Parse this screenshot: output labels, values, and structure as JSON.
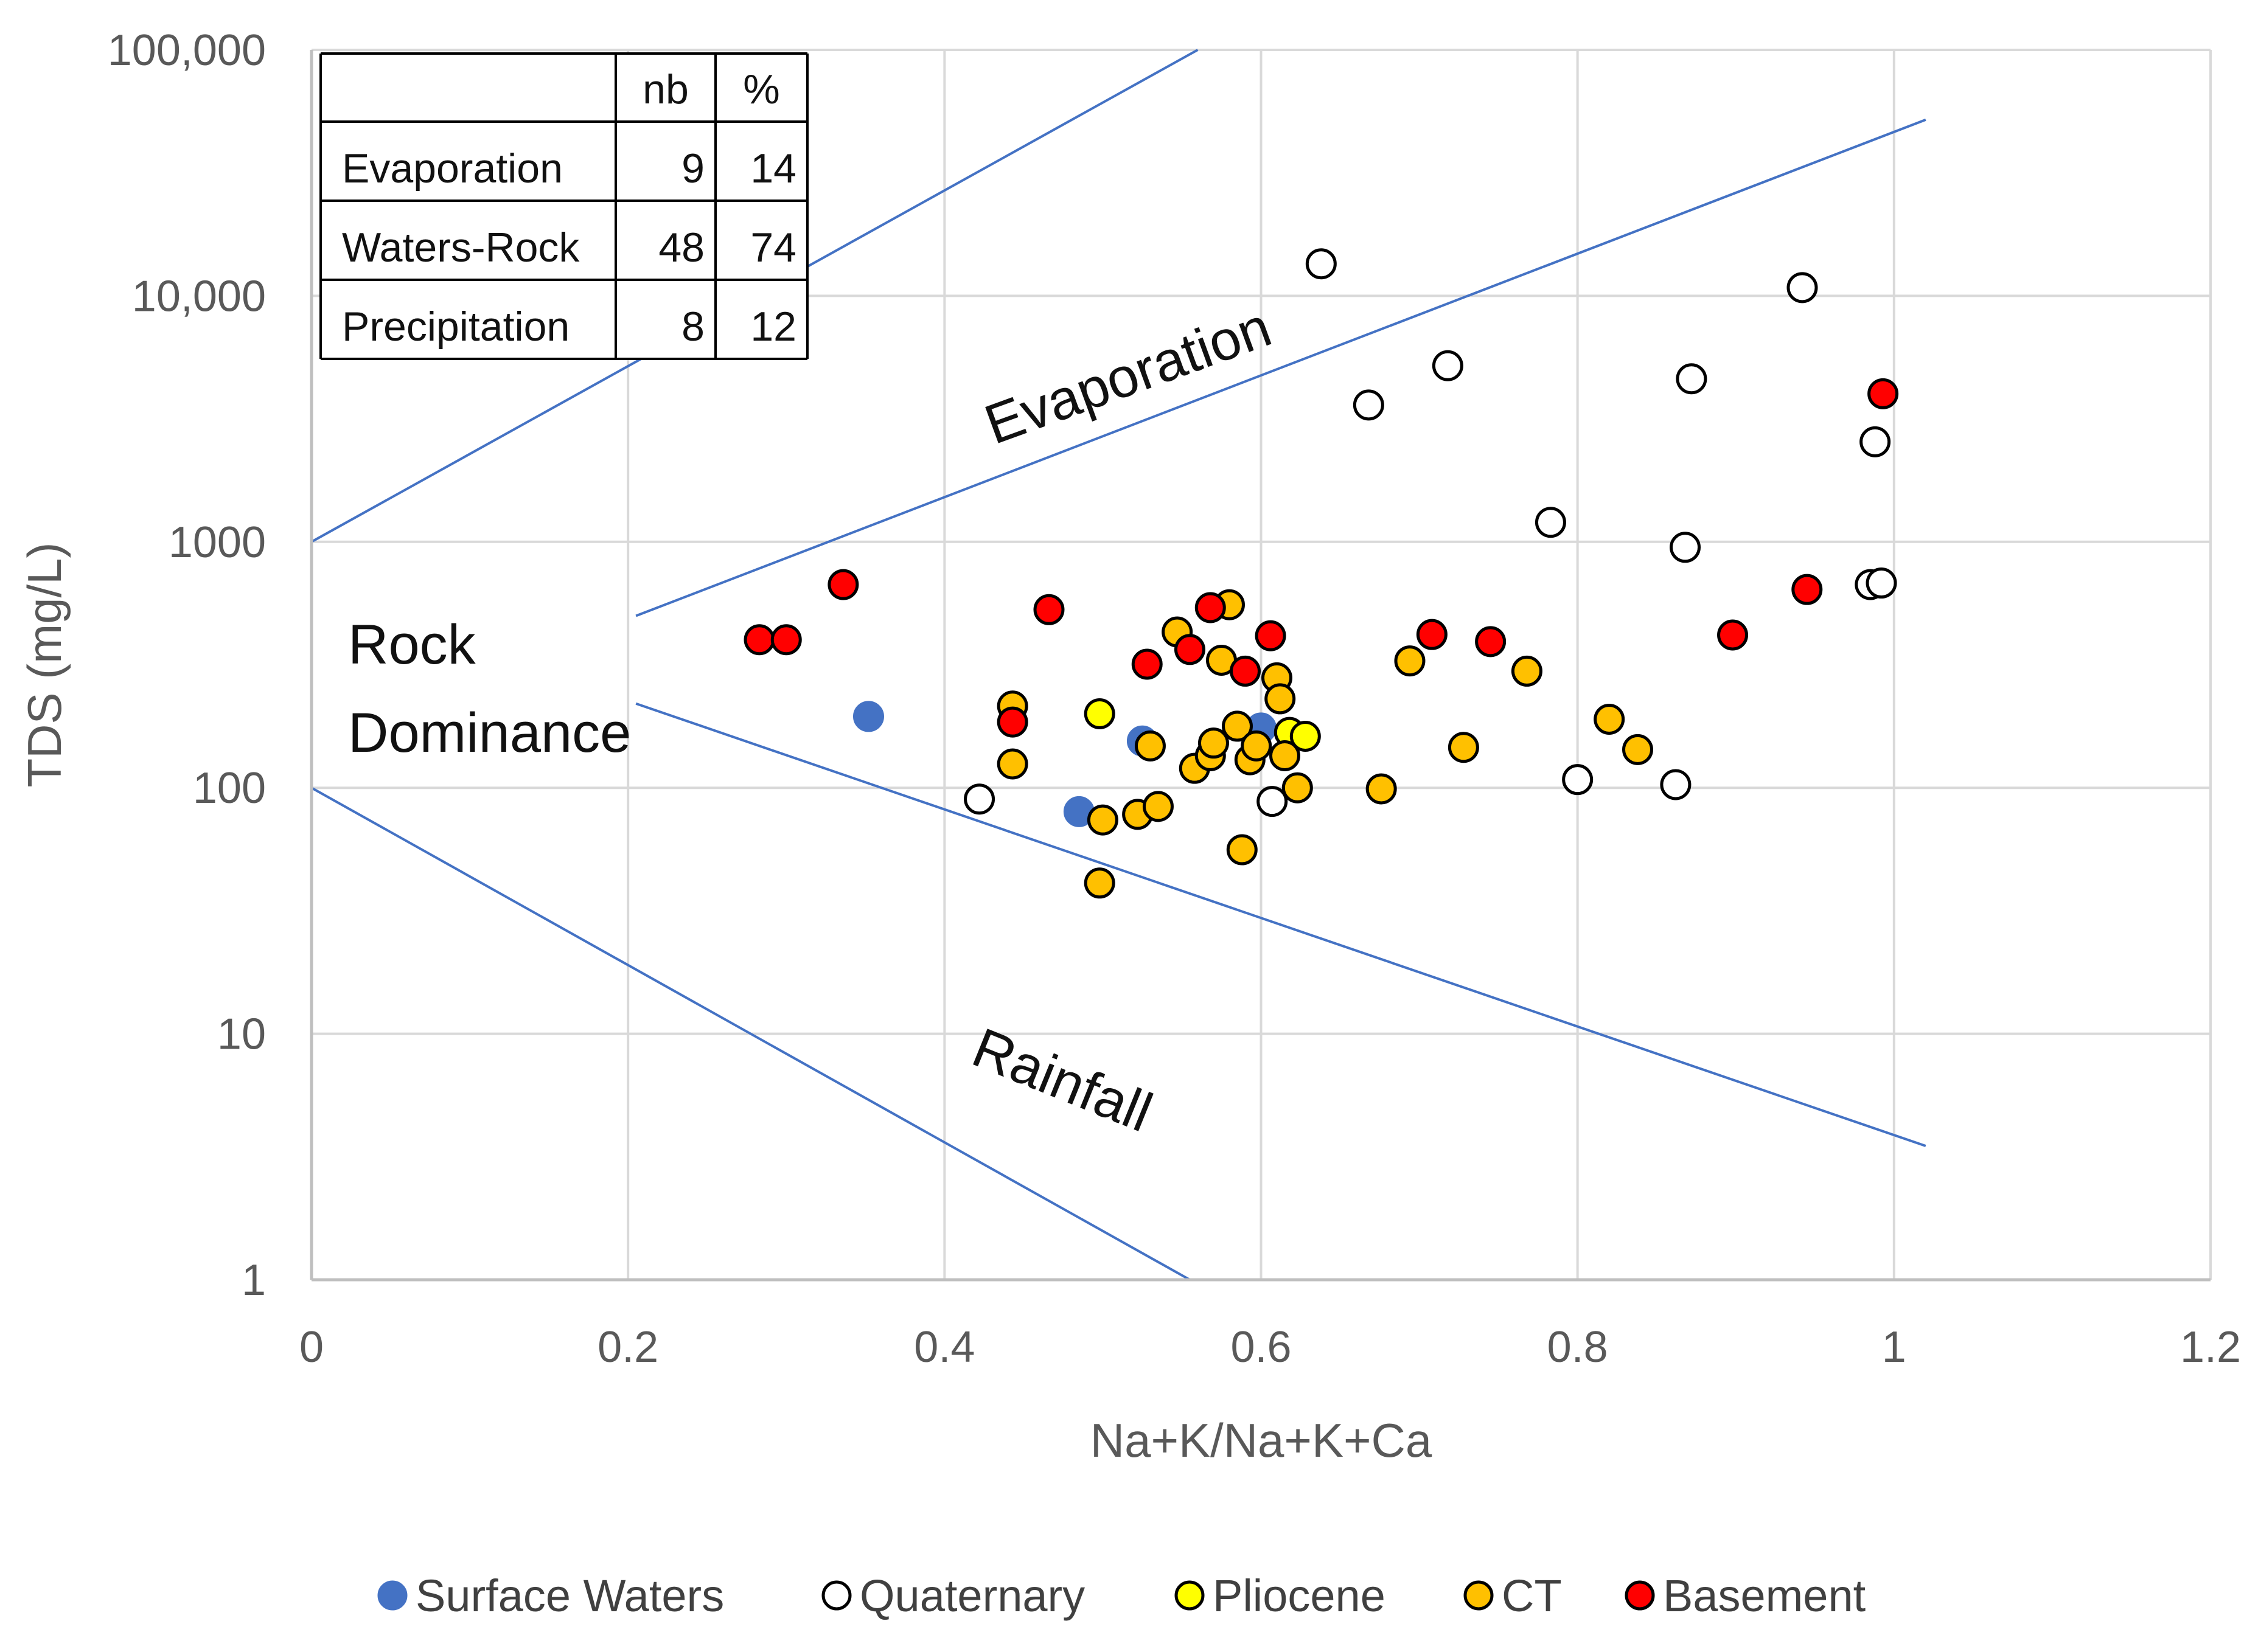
{
  "chart_data": {
    "type": "scatter",
    "title": "",
    "xlabel": "Na+K/Na+K+Ca",
    "ylabel": "TDS (mg/L)",
    "xlim": [
      0,
      1.2
    ],
    "ylim": [
      1,
      100000
    ],
    "y_scale": "log",
    "grid": true,
    "x_ticks": [
      "0",
      "0.2",
      "0.4",
      "0.6",
      "0.8",
      "1",
      "1.2"
    ],
    "y_ticks": [
      "1",
      "10",
      "100",
      "1000",
      "10,000",
      "100,000"
    ],
    "region_labels": {
      "evaporation": "Evaporation",
      "rock_line1": "Rock",
      "rock_line2": "Dominance",
      "rainfall": "Rainfall"
    },
    "boundary_lines": [
      {
        "points": [
          [
            0,
            1000
          ],
          [
            0.56,
            100000
          ]
        ]
      },
      {
        "points": [
          [
            0.205,
            500
          ],
          [
            1.02,
            52000
          ]
        ]
      },
      {
        "points": [
          [
            0.205,
            220
          ],
          [
            1.02,
            3.5
          ]
        ]
      },
      {
        "points": [
          [
            0,
            100
          ],
          [
            0.555,
            1
          ]
        ]
      }
    ],
    "table": {
      "headers": [
        "",
        "nb",
        "%"
      ],
      "rows": [
        [
          "Evaporation",
          "9",
          "14"
        ],
        [
          "Waters-Rock",
          "48",
          "74"
        ],
        [
          "Precipitation",
          "8",
          "12"
        ]
      ]
    },
    "legend_position": "bottom",
    "series": [
      {
        "name": "Surface Waters",
        "color": "#4472C4",
        "stroke": "#4472C4",
        "points": [
          [
            0.352,
            195
          ],
          [
            0.485,
            80
          ],
          [
            0.525,
            155
          ],
          [
            0.6,
            175
          ]
        ]
      },
      {
        "name": "Quaternary",
        "color": "#FFFFFF",
        "stroke": "#000000",
        "points": [
          [
            0.638,
            13500
          ],
          [
            0.668,
            3600
          ],
          [
            0.718,
            5200
          ],
          [
            0.783,
            1200
          ],
          [
            0.942,
            10800
          ],
          [
            0.872,
            4600
          ],
          [
            0.868,
            950
          ],
          [
            0.988,
            2550
          ],
          [
            0.985,
            670
          ],
          [
            0.992,
            680
          ],
          [
            0.422,
            90
          ],
          [
            0.607,
            88
          ],
          [
            0.8,
            108
          ],
          [
            0.862,
            103
          ]
        ]
      },
      {
        "name": "Pliocene",
        "color": "#FFFF00",
        "stroke": "#000000",
        "points": [
          [
            0.498,
            200
          ],
          [
            0.618,
            168
          ],
          [
            0.628,
            162
          ]
        ]
      },
      {
        "name": "CT",
        "color": "#FFC000",
        "stroke": "#000000",
        "points": [
          [
            0.443,
            215
          ],
          [
            0.443,
            125
          ],
          [
            0.5,
            74
          ],
          [
            0.498,
            41
          ],
          [
            0.522,
            78
          ],
          [
            0.53,
            148
          ],
          [
            0.535,
            84
          ],
          [
            0.547,
            430
          ],
          [
            0.558,
            120
          ],
          [
            0.568,
            135
          ],
          [
            0.57,
            152
          ],
          [
            0.575,
            330
          ],
          [
            0.58,
            555
          ],
          [
            0.585,
            178
          ],
          [
            0.588,
            56
          ],
          [
            0.593,
            130
          ],
          [
            0.597,
            148
          ],
          [
            0.61,
            280
          ],
          [
            0.612,
            230
          ],
          [
            0.615,
            135
          ],
          [
            0.623,
            100
          ],
          [
            0.676,
            99
          ],
          [
            0.694,
            328
          ],
          [
            0.728,
            146
          ],
          [
            0.768,
            298
          ],
          [
            0.82,
            190
          ],
          [
            0.838,
            143
          ]
        ]
      },
      {
        "name": "Basement",
        "color": "#FF0000",
        "stroke": "#000000",
        "points": [
          [
            0.283,
            400
          ],
          [
            0.3,
            400
          ],
          [
            0.336,
            670
          ],
          [
            0.443,
            185
          ],
          [
            0.466,
            530
          ],
          [
            0.528,
            318
          ],
          [
            0.555,
            365
          ],
          [
            0.568,
            540
          ],
          [
            0.59,
            298
          ],
          [
            0.606,
            415
          ],
          [
            0.708,
            420
          ],
          [
            0.745,
            393
          ],
          [
            0.898,
            418
          ],
          [
            0.945,
            640
          ],
          [
            0.993,
            4000
          ]
        ]
      }
    ]
  }
}
